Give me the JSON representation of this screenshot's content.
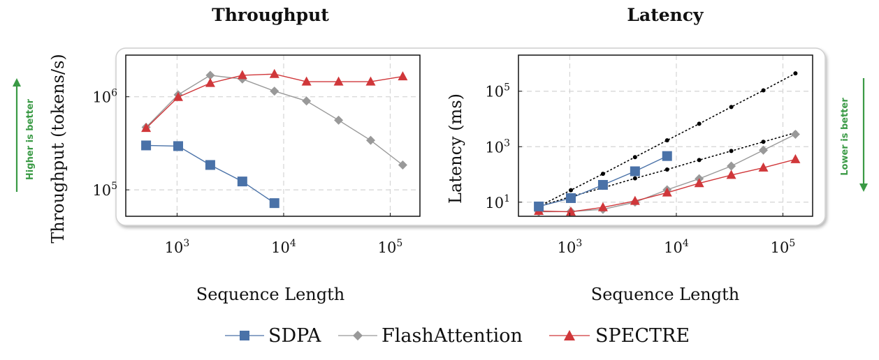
{
  "chart_data": [
    {
      "type": "line",
      "title": "Throughput",
      "xlabel": "Sequence Length",
      "ylabel": "Throughput (tokens/s)",
      "xscale": "log",
      "yscale": "log",
      "xlim": [
        330,
        190000
      ],
      "ylim": [
        52000,
        2800000
      ],
      "xticks": [
        {
          "base": "10",
          "exp": "3",
          "value": 1000
        },
        {
          "base": "10",
          "exp": "4",
          "value": 10000
        },
        {
          "base": "10",
          "exp": "5",
          "value": 100000
        }
      ],
      "yticks": [
        {
          "base": "10",
          "exp": "5",
          "value": 100000
        },
        {
          "base": "10",
          "exp": "6",
          "value": 1000000
        }
      ],
      "grid": true,
      "side_note": "Higher is better",
      "series": [
        {
          "name": "SDPA",
          "color": "#4a72a8",
          "marker": "square",
          "x": [
            512,
            1024,
            2048,
            4096,
            8192
          ],
          "y": [
            300000,
            295000,
            185000,
            123000,
            72000
          ]
        },
        {
          "name": "FlashAttention",
          "color": "#999999",
          "marker": "diamond",
          "x": [
            512,
            1024,
            2048,
            4096,
            8192,
            16384,
            32768,
            65536,
            131072
          ],
          "y": [
            470000,
            1050000,
            1700000,
            1550000,
            1150000,
            900000,
            560000,
            340000,
            185000
          ]
        },
        {
          "name": "SPECTRE",
          "color": "#d0373a",
          "marker": "triangle",
          "x": [
            512,
            1024,
            2048,
            4096,
            8192,
            16384,
            32768,
            65536,
            131072
          ],
          "y": [
            460000,
            990000,
            1400000,
            1700000,
            1750000,
            1450000,
            1450000,
            1450000,
            1650000
          ]
        }
      ]
    },
    {
      "type": "line",
      "title": "Latency",
      "xlabel": "Sequence Length",
      "ylabel": "Latency (ms)",
      "xscale": "log",
      "yscale": "log",
      "xlim": [
        330,
        190000
      ],
      "ylim": [
        3.1,
        2000000
      ],
      "xticks": [
        {
          "base": "10",
          "exp": "3",
          "value": 1000
        },
        {
          "base": "10",
          "exp": "4",
          "value": 10000
        },
        {
          "base": "10",
          "exp": "5",
          "value": 100000
        }
      ],
      "yticks": [
        {
          "base": "10",
          "exp": "1",
          "value": 10
        },
        {
          "base": "10",
          "exp": "3",
          "value": 1000
        },
        {
          "base": "10",
          "exp": "5",
          "value": 100000
        }
      ],
      "grid": true,
      "side_note": "Lower is better",
      "series": [
        {
          "name": "SDPA",
          "color": "#4a72a8",
          "marker": "square",
          "x": [
            512,
            1024,
            2048,
            4096,
            8192
          ],
          "y": [
            7,
            14,
            42,
            130,
            460
          ]
        },
        {
          "name": "FlashAttention",
          "color": "#999999",
          "marker": "diamond",
          "x": [
            512,
            1024,
            2048,
            4096,
            8192,
            16384,
            32768,
            65536,
            131072
          ],
          "y": [
            4.5,
            4.6,
            5.5,
            10,
            28,
            70,
            200,
            750,
            2800
          ]
        },
        {
          "name": "SPECTRE",
          "color": "#d0373a",
          "marker": "triangle",
          "x": [
            512,
            1024,
            2048,
            4096,
            8192,
            16384,
            32768,
            65536,
            131072
          ],
          "y": [
            4.8,
            4.5,
            6.5,
            11,
            22,
            48,
            95,
            175,
            350
          ]
        }
      ],
      "reference_lines": [
        {
          "style": "dotted",
          "color": "#000000",
          "x": [
            512,
            1024,
            2048,
            4096,
            8192,
            16384,
            32768,
            65536,
            131072
          ],
          "y": [
            7,
            27,
            105,
            420,
            1700,
            6700,
            27000,
            107000,
            440000
          ]
        },
        {
          "style": "dotted",
          "color": "#000000",
          "x": [
            512,
            1024,
            2048,
            4096,
            8192,
            16384,
            32768,
            65536,
            131072
          ],
          "y": [
            7,
            16,
            33,
            72,
            150,
            330,
            700,
            1500,
            3200
          ]
        }
      ]
    }
  ],
  "legend": {
    "placement": "bottom",
    "items": [
      {
        "label": "SDPA",
        "color": "#4a72a8",
        "marker": "square"
      },
      {
        "label": "FlashAttention",
        "color": "#999999",
        "marker": "diamond"
      },
      {
        "label": "SPECTRE",
        "color": "#d0373a",
        "marker": "triangle"
      }
    ]
  },
  "colors": {
    "panel_border": "#cccccc",
    "grid": "#d4d4d4",
    "arrow": "#3a9a45"
  }
}
